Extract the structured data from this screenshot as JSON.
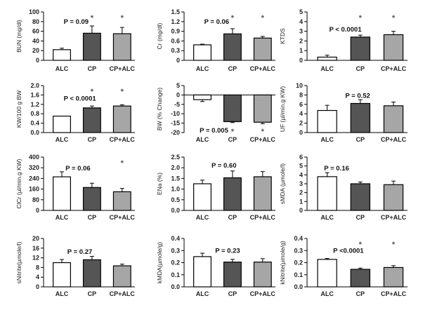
{
  "chart_data": [
    {
      "type": "bar",
      "id": "bun",
      "categories": [
        "ALC",
        "CP",
        "CP+ALC"
      ],
      "values": [
        22,
        56,
        55
      ],
      "errors": [
        3,
        15,
        13
      ],
      "significant": [
        false,
        true,
        true
      ],
      "ylabel": "BUN (mg/dl)",
      "ylim": [
        0,
        100
      ],
      "yticks": [
        0,
        20,
        40,
        60,
        80,
        100
      ],
      "ytick_labels": [
        "0",
        "20",
        "40",
        "60",
        "80",
        "100"
      ],
      "pvalue": "P = 0.09"
    },
    {
      "type": "bar",
      "id": "cr",
      "categories": [
        "ALC",
        "CP",
        "CP+ALC"
      ],
      "values": [
        0.48,
        0.82,
        0.69
      ],
      "errors": [
        0.02,
        0.16,
        0.05
      ],
      "significant": [
        false,
        true,
        true
      ],
      "ylabel": "Cr (mg/dl)",
      "ylim": [
        0,
        1.5
      ],
      "yticks": [
        0,
        0.3,
        0.6,
        0.9,
        1.2,
        1.5
      ],
      "ytick_labels": [
        "0",
        "0.3",
        "0.6",
        "0.9",
        "1.2",
        "1.5"
      ],
      "pvalue": "P = 0.06"
    },
    {
      "type": "bar",
      "id": "ktds",
      "categories": [
        "ALC",
        "CP",
        "CP+ALC"
      ],
      "values": [
        0.33,
        2.4,
        2.65
      ],
      "errors": [
        0.2,
        0.2,
        0.35
      ],
      "significant": [
        false,
        true,
        true
      ],
      "ylabel": "KTDS",
      "ylim": [
        0,
        5
      ],
      "yticks": [
        0,
        1,
        2,
        3,
        4,
        5
      ],
      "ytick_labels": [
        "0",
        "1",
        "2",
        "3",
        "4",
        "5"
      ],
      "pvalue": "P < 0.0001"
    },
    {
      "type": "bar",
      "id": "kw",
      "categories": [
        "ALC",
        "CP",
        "CP+ALC"
      ],
      "values": [
        0.7,
        1.05,
        1.13
      ],
      "errors": [
        0.0,
        0.08,
        0.05
      ],
      "significant": [
        false,
        true,
        true
      ],
      "ylabel": "KW/100 g BW",
      "ylim": [
        0,
        2.0
      ],
      "yticks": [
        0,
        0.4,
        0.8,
        1.2,
        1.6,
        2.0
      ],
      "ytick_labels": [
        "0.0",
        "0.4",
        "0.8",
        "1.2",
        "1.6",
        "2.0"
      ],
      "pvalue": "P < 0.0001"
    },
    {
      "type": "bar",
      "id": "bw",
      "categories": [
        "ALC",
        "CP",
        "CP+ALC"
      ],
      "values": [
        -2.5,
        -14.2,
        -14.5
      ],
      "errors": [
        1.0,
        0.5,
        0.8
      ],
      "significant": [
        false,
        true,
        true
      ],
      "ylabel": "BW (% Change)",
      "ylim": [
        -20,
        5
      ],
      "yticks": [
        -20,
        -15,
        -10,
        -5,
        0,
        5
      ],
      "ytick_labels": [
        "-20",
        "-15",
        "-10",
        "-5",
        "0",
        "5"
      ],
      "pvalue": "P = 0.005"
    },
    {
      "type": "bar",
      "id": "uf",
      "categories": [
        "ALC",
        "CP",
        "CP+ALC"
      ],
      "values": [
        4.7,
        6.2,
        5.7
      ],
      "errors": [
        1.1,
        0.8,
        0.8
      ],
      "significant": [
        false,
        false,
        false
      ],
      "ylabel": "UF (µl/min.g KW)",
      "ylim": [
        0,
        10
      ],
      "yticks": [
        0,
        2,
        4,
        6,
        8,
        10
      ],
      "ytick_labels": [
        "0",
        "2",
        "4",
        "6",
        "8",
        "10"
      ],
      "pvalue": "P = 0.52"
    },
    {
      "type": "bar",
      "id": "clcr",
      "categories": [
        "ALC",
        "CP",
        "CP+ALC"
      ],
      "values": [
        252,
        172,
        140
      ],
      "errors": [
        38,
        32,
        25
      ],
      "significant": [
        false,
        false,
        true
      ],
      "ylabel": "ClCr (µl/min.g KW)",
      "ylim": [
        0,
        400
      ],
      "yticks": [
        0,
        80,
        160,
        240,
        320,
        400
      ],
      "ytick_labels": [
        "0",
        "80",
        "160",
        "240",
        "320",
        "400"
      ],
      "pvalue": "P = 0.06"
    },
    {
      "type": "bar",
      "id": "ena",
      "categories": [
        "ALC",
        "CP",
        "CP+ALC"
      ],
      "values": [
        1.25,
        1.53,
        1.58
      ],
      "errors": [
        0.17,
        0.32,
        0.24
      ],
      "significant": [
        false,
        false,
        false
      ],
      "ylabel": "ENa (%)",
      "ylim": [
        0,
        2.5
      ],
      "yticks": [
        0,
        0.5,
        1.0,
        1.5,
        2.0,
        2.5
      ],
      "ytick_labels": [
        "0.0",
        "0.5",
        "1.0",
        "1.5",
        "2.0",
        "2.5"
      ],
      "pvalue": "P = 0.60"
    },
    {
      "type": "bar",
      "id": "smda",
      "categories": [
        "ALC",
        "CP",
        "CP+ALC"
      ],
      "values": [
        3.8,
        3.0,
        2.9
      ],
      "errors": [
        0.45,
        0.2,
        0.4
      ],
      "significant": [
        false,
        false,
        false
      ],
      "ylabel": "sMDA (µmole/l)",
      "ylim": [
        0,
        6
      ],
      "yticks": [
        0,
        1,
        2,
        3,
        4,
        5,
        6
      ],
      "ytick_labels": [
        "0",
        "1",
        "2",
        "3",
        "4",
        "5",
        "6"
      ],
      "pvalue": "P = 0.16"
    },
    {
      "type": "bar",
      "id": "snitrite",
      "categories": [
        "ALC",
        "CP",
        "CP+ALC"
      ],
      "values": [
        10.0,
        11.2,
        8.7
      ],
      "errors": [
        1.3,
        1.4,
        0.7
      ],
      "significant": [
        false,
        false,
        false
      ],
      "ylabel": "sNitrite(µmole/l)",
      "ylim": [
        0,
        20
      ],
      "yticks": [
        0,
        4,
        8,
        12,
        16,
        20
      ],
      "ytick_labels": [
        "0",
        "4",
        "8",
        "12",
        "16",
        "20"
      ],
      "pvalue": "P = 0.27"
    },
    {
      "type": "bar",
      "id": "kmda",
      "categories": [
        "ALC",
        "CP",
        "CP+ALC"
      ],
      "values": [
        0.25,
        0.205,
        0.205
      ],
      "errors": [
        0.028,
        0.022,
        0.028
      ],
      "significant": [
        false,
        false,
        false
      ],
      "ylabel": "kMDA(µmole/g)",
      "ylim": [
        0,
        0.4
      ],
      "yticks": [
        0,
        0.1,
        0.2,
        0.3,
        0.4
      ],
      "ytick_labels": [
        "0.0",
        "0.1",
        "0.2",
        "0.3",
        "0.4"
      ],
      "pvalue": "P = 0.23"
    },
    {
      "type": "bar",
      "id": "knitrite",
      "categories": [
        "ALC",
        "CP",
        "CP+ALC"
      ],
      "values": [
        0.227,
        0.145,
        0.16
      ],
      "errors": [
        0.008,
        0.01,
        0.015
      ],
      "significant": [
        false,
        true,
        true
      ],
      "ylabel": "kNitrite(µmole/g)",
      "ylim": [
        0,
        0.4
      ],
      "yticks": [
        0,
        0.1,
        0.2,
        0.3,
        0.4
      ],
      "ytick_labels": [
        "0.0",
        "0.1",
        "0.2",
        "0.3",
        "0.4"
      ],
      "pvalue": "P <0.0001"
    }
  ],
  "style": {
    "bar_colors": [
      "#ffffff",
      "#555555",
      "#a6a6a6"
    ],
    "bar_stroke": "#000000",
    "star_color": "#555555",
    "significance_marker": "*"
  }
}
